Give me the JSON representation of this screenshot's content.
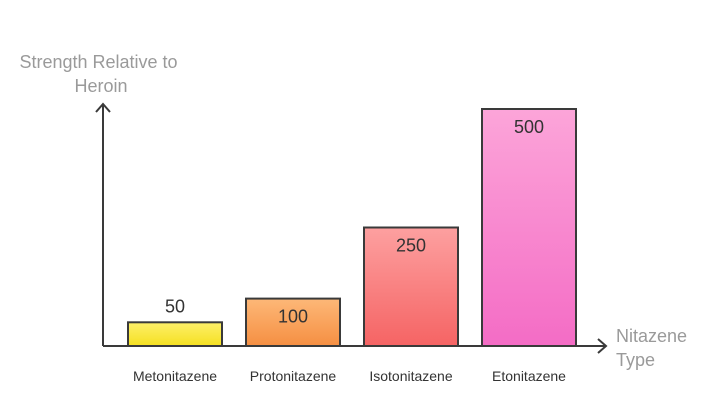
{
  "chart_data": {
    "type": "bar",
    "title": "",
    "ylabel_lines": [
      "Strength Relative to",
      "Heroin"
    ],
    "xlabel_lines": [
      "Nitazene",
      "Type"
    ],
    "categories": [
      "Metonitazene",
      "Protonitazene",
      "Isotonitazene",
      "Etonitazene"
    ],
    "values": [
      50,
      100,
      250,
      500
    ],
    "ylim": [
      0,
      500
    ],
    "grid": false,
    "legend": "none",
    "bar_gradients": [
      [
        "#fdf06a",
        "#f5e020"
      ],
      [
        "#fdb878",
        "#f58f42"
      ],
      [
        "#fda0a0",
        "#f56464"
      ],
      [
        "#fca5d9",
        "#f46cc5"
      ]
    ],
    "axis_color": "#3a3a3a",
    "axis_title_color": "#9a9a9a"
  }
}
